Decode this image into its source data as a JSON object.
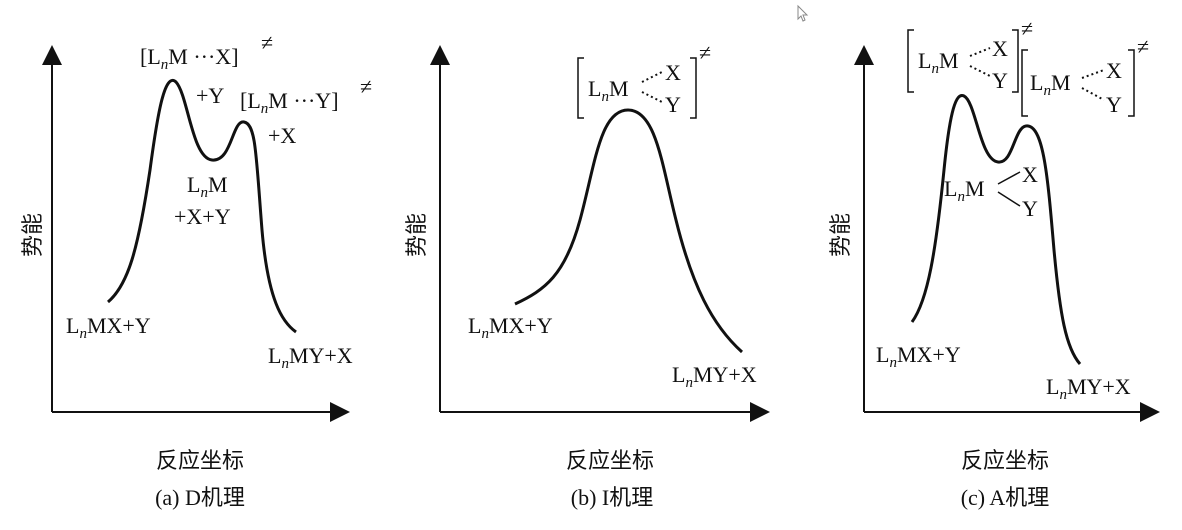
{
  "panels": [
    {
      "id": "D",
      "axis_y": "势能",
      "axis_x": "反应坐标",
      "caption": "(a) D机理",
      "labels": {
        "reactant": "MX+Y",
        "product": "MY+X",
        "ts1": "[LₙM ···X]",
        "ts1_extra": "+Y",
        "ts2": "[LₙM ···Y]",
        "ts2_extra": "+X",
        "intermediate_line1": "M",
        "intermediate_line2": "+X+Y"
      }
    },
    {
      "id": "I",
      "axis_y": "势能",
      "axis_x": "反应坐标",
      "caption": "(b) I机理",
      "labels": {
        "reactant": "MX+Y",
        "product": "MY+X",
        "ts_x": "X",
        "ts_y": "Y"
      }
    },
    {
      "id": "A",
      "axis_y": "势能",
      "axis_x": "反应坐标",
      "caption": "(c) A机理",
      "labels": {
        "reactant": "MX+Y",
        "product": "MY+X",
        "ts_x": "X",
        "ts_y": "Y",
        "int_x": "X",
        "int_y": "Y"
      }
    }
  ],
  "symbols": {
    "L": "L",
    "n": "n",
    "M": "M",
    "dagger": "≠"
  },
  "cursor": "cursor-arrow"
}
